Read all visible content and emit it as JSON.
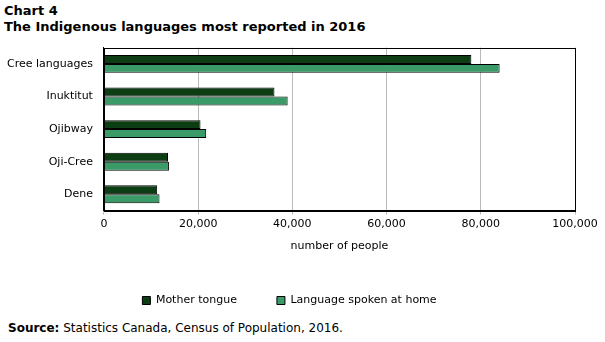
{
  "chart_data": {
    "type": "bar",
    "orientation": "horizontal",
    "title": "Chart 4",
    "subtitle": "The Indigenous languages most reported in 2016",
    "source": "Source: Statistics Canada, Census of Population, 2016.",
    "x_label": "number of people",
    "categories": [
      "Cree languages",
      "Inuktitut",
      "Ojibway",
      "Oji-Cree",
      "Dene"
    ],
    "series": [
      {
        "name": "Mother tongue",
        "color": "#0d3d12",
        "values": [
          78000,
          36200,
          20500,
          13600,
          11300
        ]
      },
      {
        "name": "Language spoken at home",
        "color": "#3a9a68",
        "values": [
          84000,
          39000,
          21700,
          13800,
          11800
        ]
      }
    ],
    "xlim": [
      0,
      100000
    ],
    "xticks": [
      0,
      {
        "value": 20000,
        "label": "20,000"
      },
      {
        "value": 40000,
        "label": "40,000"
      },
      {
        "value": 60000,
        "label": "60,000"
      },
      {
        "value": 80000,
        "label": "80,000"
      },
      {
        "value": 100000,
        "label": "100,000"
      }
    ],
    "grid": true,
    "legend": "bottom"
  }
}
